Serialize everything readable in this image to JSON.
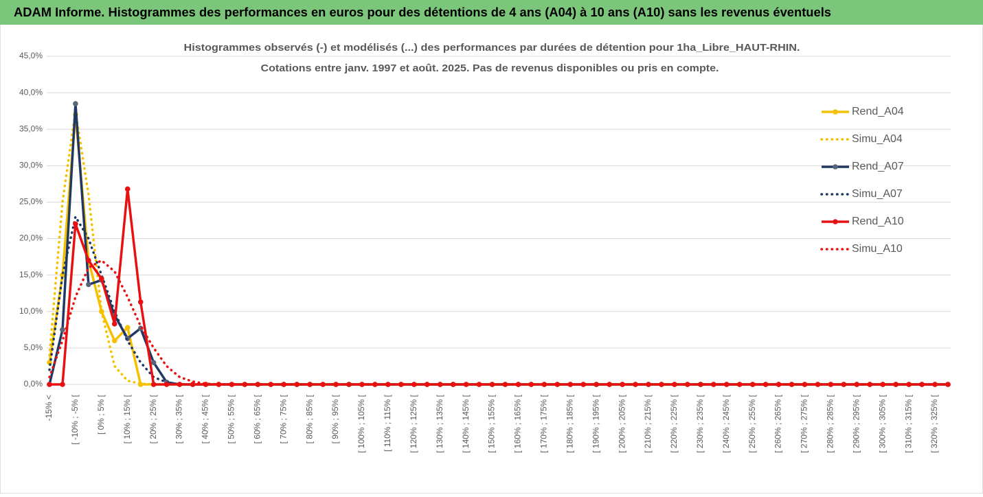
{
  "header": "ADAM Informe. Histogrammes des performances en euros pour des détentions de 4 ans (A04) à 10 ans (A10) sans les revenus éventuels",
  "chart_data": {
    "type": "line",
    "title": "Histogrammes observés (-) et modélisés (...) des performances par durées de détention pour 1ha_Libre_HAUT-RHIN.",
    "subtitle": "Cotations entre janv. 1997 et août. 2025. Pas de revenus disponibles ou pris en compte.",
    "categories": [
      "-15% <",
      null,
      "[ -10% ; -5% [",
      null,
      "[ 0% ; 5% [",
      null,
      "[ 10% ; 15% [",
      null,
      "[ 20% ; 25% [",
      null,
      "[ 30% ; 35% [",
      null,
      "[ 40% ; 45% [",
      null,
      "[ 50% ; 55% [",
      null,
      "[ 60% ; 65% [",
      null,
      "[ 70% ; 75% [",
      null,
      "[ 80% ; 85% [",
      null,
      "[ 90% ; 95% [",
      null,
      "[ 100% ; 105% [",
      null,
      "[ 110% ; 115% [",
      null,
      "[ 120% ; 125% [",
      null,
      "[ 130% ; 135% [",
      null,
      "[ 140% ; 145% [",
      null,
      "[ 150% ; 155% [",
      null,
      "[ 160% ; 165% [",
      null,
      "[ 170% ; 175% [",
      null,
      "[ 180% ; 185% [",
      null,
      "[ 190% ; 195% [",
      null,
      "[ 200% ; 205% [",
      null,
      "[ 210% ; 215% [",
      null,
      "[ 220% ; 225% [",
      null,
      "[ 230% ; 235% [",
      null,
      "[ 240% ; 245% [",
      null,
      "[ 250% ; 255% [",
      null,
      "[ 260% ; 265% [",
      null,
      "[ 270% ; 275% [",
      null,
      "[ 280% ; 285% [",
      null,
      "[ 290% ; 295% [",
      null,
      "[ 300% ; 305% [",
      null,
      "[ 310% ; 315% [",
      null,
      "[ 320% ; 325% [",
      null
    ],
    "series": [
      {
        "name": "Rend_A04",
        "color": "#f5c000",
        "style": "solid",
        "markers": true,
        "values": [
          3,
          15,
          37,
          17,
          10,
          6,
          7.8,
          0,
          0,
          0,
          0,
          0,
          0,
          0,
          0,
          0,
          0,
          0,
          0,
          0,
          0,
          0,
          0,
          0,
          0,
          0,
          0,
          0,
          0,
          0,
          0,
          0,
          0,
          0,
          0,
          0,
          0,
          0,
          0,
          0,
          0,
          0,
          0,
          0,
          0,
          0,
          0,
          0,
          0,
          0,
          0,
          0,
          0,
          0,
          0,
          0,
          0,
          0,
          0,
          0,
          0,
          0,
          0,
          0,
          0,
          0,
          0,
          0,
          0,
          0
        ]
      },
      {
        "name": "Simu_A04",
        "color": "#f5c000",
        "style": "dotted",
        "markers": false,
        "values": [
          4,
          25,
          37.5,
          26,
          10,
          2.5,
          0.5,
          0.1,
          0,
          0,
          0,
          0,
          0,
          0,
          0,
          0,
          0,
          0,
          0,
          0,
          0,
          0,
          0,
          0,
          0,
          0,
          0,
          0,
          0,
          0,
          0,
          0,
          0,
          0,
          0,
          0,
          0,
          0,
          0,
          0,
          0,
          0,
          0,
          0,
          0,
          0,
          0,
          0,
          0,
          0,
          0,
          0,
          0,
          0,
          0,
          0,
          0,
          0,
          0,
          0,
          0,
          0,
          0,
          0,
          0,
          0,
          0,
          0,
          0,
          0
        ]
      },
      {
        "name": "Rend_A07",
        "color": "#1f3864",
        "style": "solid",
        "markers": true,
        "marker_color": "#5a6478",
        "values": [
          0,
          7.5,
          38.5,
          13.7,
          14.3,
          9.5,
          6.3,
          7.7,
          3,
          0.3,
          0,
          0,
          0,
          0,
          0,
          0,
          0,
          0,
          0,
          0,
          0,
          0,
          0,
          0,
          0,
          0,
          0,
          0,
          0,
          0,
          0,
          0,
          0,
          0,
          0,
          0,
          0,
          0,
          0,
          0,
          0,
          0,
          0,
          0,
          0,
          0,
          0,
          0,
          0,
          0,
          0,
          0,
          0,
          0,
          0,
          0,
          0,
          0,
          0,
          0,
          0,
          0,
          0,
          0,
          0,
          0,
          0,
          0,
          0,
          0
        ]
      },
      {
        "name": "Simu_A07",
        "color": "#1f3864",
        "style": "dotted",
        "markers": false,
        "values": [
          2,
          15,
          23,
          20,
          15,
          10,
          6,
          3,
          1,
          0.3,
          0,
          0,
          0,
          0,
          0,
          0,
          0,
          0,
          0,
          0,
          0,
          0,
          0,
          0,
          0,
          0,
          0,
          0,
          0,
          0,
          0,
          0,
          0,
          0,
          0,
          0,
          0,
          0,
          0,
          0,
          0,
          0,
          0,
          0,
          0,
          0,
          0,
          0,
          0,
          0,
          0,
          0,
          0,
          0,
          0,
          0,
          0,
          0,
          0,
          0,
          0,
          0,
          0,
          0,
          0,
          0,
          0,
          0,
          0,
          0
        ]
      },
      {
        "name": "Rend_A10",
        "color": "#e81010",
        "style": "solid",
        "markers": true,
        "values": [
          0,
          0,
          22,
          17,
          14.5,
          8.3,
          26.8,
          11.3,
          0,
          0,
          0,
          0,
          0,
          0,
          0,
          0,
          0,
          0,
          0,
          0,
          0,
          0,
          0,
          0,
          0,
          0,
          0,
          0,
          0,
          0,
          0,
          0,
          0,
          0,
          0,
          0,
          0,
          0,
          0,
          0,
          0,
          0,
          0,
          0,
          0,
          0,
          0,
          0,
          0,
          0,
          0,
          0,
          0,
          0,
          0,
          0,
          0,
          0,
          0,
          0,
          0,
          0,
          0,
          0,
          0,
          0,
          0,
          0,
          0,
          0
        ]
      },
      {
        "name": "Simu_A10",
        "color": "#e81010",
        "style": "dotted",
        "markers": false,
        "values": [
          1,
          6,
          12,
          16,
          17,
          15.5,
          12,
          8,
          5,
          2.5,
          1,
          0.4,
          0.1,
          0,
          0,
          0,
          0,
          0,
          0,
          0,
          0,
          0,
          0,
          0,
          0,
          0,
          0,
          0,
          0,
          0,
          0,
          0,
          0,
          0,
          0,
          0,
          0,
          0,
          0,
          0,
          0,
          0,
          0,
          0,
          0,
          0,
          0,
          0,
          0,
          0,
          0,
          0,
          0,
          0,
          0,
          0,
          0,
          0,
          0,
          0,
          0,
          0,
          0,
          0,
          0,
          0,
          0,
          0,
          0,
          0
        ]
      }
    ],
    "ylim": [
      0,
      45
    ],
    "yticks": [
      {
        "value": 0,
        "label": "0,0%"
      },
      {
        "value": 5,
        "label": "5,0%"
      },
      {
        "value": 10,
        "label": "10,0%"
      },
      {
        "value": 15,
        "label": "15,0%"
      },
      {
        "value": 20,
        "label": "20,0%"
      },
      {
        "value": 25,
        "label": "25,0%"
      },
      {
        "value": 30,
        "label": "30,0%"
      },
      {
        "value": 35,
        "label": "35,0%"
      },
      {
        "value": 40,
        "label": "40,0%"
      },
      {
        "value": 45,
        "label": "45,0%"
      }
    ],
    "grid": true,
    "legend": "right"
  }
}
